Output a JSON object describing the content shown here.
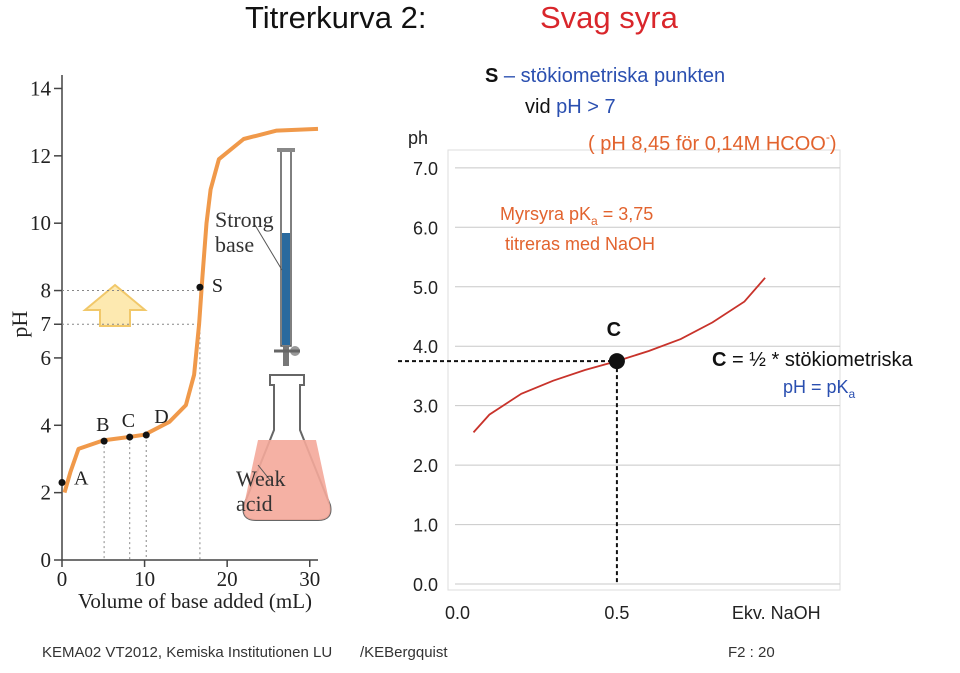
{
  "slide": {
    "title": "Titrerkurva 2:",
    "title_highlight": "Svag syra",
    "footer_left": "KEMA02 VT2012, Kemiska Institutionen LU",
    "footer_mid": "/KEBergquist",
    "footer_right": "F2 : 20"
  },
  "chart_data": [
    {
      "type": "line",
      "x_label": "Volume of base added (mL)",
      "y_label": "pH",
      "x": [
        0.3,
        1,
        2,
        5,
        8,
        10,
        13,
        15,
        16,
        16.6,
        17,
        17.5,
        18,
        19,
        22,
        26,
        31
      ],
      "values": [
        2.0,
        2.6,
        3.3,
        3.55,
        3.65,
        3.72,
        4.1,
        4.6,
        5.5,
        7,
        8.4,
        10,
        11,
        11.9,
        12.5,
        12.75,
        12.8
      ],
      "color": "#f0994a",
      "points": {
        "labels": [
          "A",
          "B",
          "C",
          "D",
          "S"
        ],
        "x": [
          0,
          5.1,
          8.2,
          10.2,
          16.7
        ],
        "values": [
          2.3,
          3.53,
          3.65,
          3.71,
          8.1
        ]
      },
      "xlim": [
        0,
        31
      ],
      "ylim": [
        0,
        14.4
      ],
      "xticks": [
        0,
        10,
        20,
        30
      ],
      "yticks": [
        0,
        2,
        4,
        6,
        7,
        8,
        10,
        12,
        14
      ],
      "annotations": [
        "Strong",
        "base",
        "Weak",
        "acid"
      ]
    },
    {
      "type": "line",
      "y_label": "ph",
      "x": [
        0.05,
        0.1,
        0.2,
        0.3,
        0.4,
        0.5,
        0.6,
        0.7,
        0.8,
        0.9,
        0.965
      ],
      "values": [
        2.55,
        2.85,
        3.2,
        3.42,
        3.6,
        3.75,
        3.92,
        4.12,
        4.4,
        4.75,
        5.15
      ],
      "color": "#c8332b",
      "point": {
        "label": "C",
        "x": 0.5,
        "value": 3.75
      },
      "xlim": [
        -0.03,
        1.2
      ],
      "ylim": [
        -0.1,
        7.3
      ],
      "xticks": [
        {
          "value": 0,
          "label": "0.0"
        },
        {
          "value": 0.5,
          "label": "0.5"
        },
        {
          "value": 1,
          "label": "Ekv. NaOH"
        }
      ],
      "yticks": [
        {
          "value": 0,
          "label": "0.0"
        },
        {
          "value": 1,
          "label": "1.0"
        },
        {
          "value": 2,
          "label": "2.0"
        },
        {
          "value": 3,
          "label": "3.0"
        },
        {
          "value": 4,
          "label": "4.0"
        },
        {
          "value": 5,
          "label": "5.0"
        },
        {
          "value": 6,
          "label": "6.0"
        },
        {
          "value": 7,
          "label": "7.0"
        }
      ],
      "grid": true,
      "annotations": {
        "s_bold": "S",
        "s_text": " – stökiometriska punkten",
        "vid": "vid ",
        "vid_ph": "pH > 7",
        "hcoo": "( pH 8,45 för 0,14M HCOO",
        "hcoo_sup": "-",
        "hcoo_end": ")",
        "pka_a": "Myrsyra pK",
        "pka_sub": "a",
        "pka_b": " = 3,75",
        "titr": "titreras med NaOH",
        "c_bold": "C",
        "c_text": " = ½ * stökiometriska",
        "c_ph": "pH = pK",
        "c_sub": "a"
      }
    }
  ]
}
